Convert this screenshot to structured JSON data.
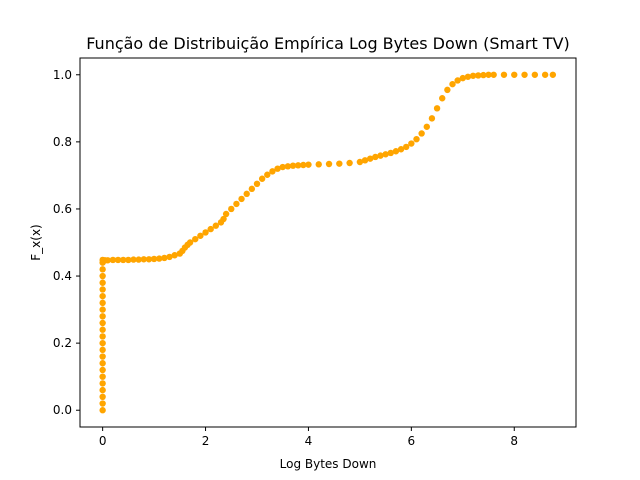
{
  "chart_data": {
    "type": "scatter",
    "title": "Função de Distribuição Empírica Log Bytes Down (Smart TV)",
    "xlabel": "Log Bytes Down",
    "ylabel": "F_x(x)",
    "xlim": [
      -0.44,
      9.2
    ],
    "ylim": [
      -0.05,
      1.05
    ],
    "xticks": [
      0,
      2,
      4,
      6,
      8
    ],
    "xtick_labels": [
      "0",
      "2",
      "4",
      "6",
      "8"
    ],
    "yticks": [
      0.0,
      0.2,
      0.4,
      0.6,
      0.8,
      1.0
    ],
    "ytick_labels": [
      "0.0",
      "0.2",
      "0.4",
      "0.6",
      "0.8",
      "1.0"
    ],
    "grid": false,
    "legend": "none",
    "marker_color": "#ffa500",
    "series": [
      {
        "x": [
          0,
          0,
          0,
          0,
          0,
          0,
          0,
          0,
          0,
          0,
          0,
          0,
          0,
          0,
          0,
          0,
          0,
          0,
          0,
          0,
          0,
          0,
          0,
          0,
          0.02,
          0.05,
          0.1,
          0.2,
          0.3,
          0.4,
          0.5,
          0.6,
          0.7,
          0.8,
          0.9,
          1.0,
          1.1,
          1.2,
          1.3,
          1.4,
          1.5,
          1.55,
          1.6,
          1.65,
          1.7,
          1.8,
          1.9,
          2.0,
          2.1,
          2.2,
          2.3,
          2.35,
          2.4,
          2.5,
          2.6,
          2.7,
          2.8,
          2.9,
          3.0,
          3.1,
          3.2,
          3.3,
          3.4,
          3.5,
          3.6,
          3.7,
          3.8,
          3.9,
          4.0,
          4.2,
          4.4,
          4.6,
          4.8,
          5.0,
          5.1,
          5.2,
          5.3,
          5.4,
          5.5,
          5.6,
          5.7,
          5.8,
          5.9,
          6.0,
          6.1,
          6.2,
          6.3,
          6.4,
          6.5,
          6.6,
          6.7,
          6.8,
          6.9,
          7.0,
          7.1,
          7.2,
          7.3,
          7.4,
          7.5,
          7.6,
          7.8,
          8.0,
          8.2,
          8.4,
          8.6,
          8.75
        ],
        "y": [
          0.0,
          0.02,
          0.04,
          0.06,
          0.08,
          0.1,
          0.12,
          0.14,
          0.16,
          0.18,
          0.2,
          0.22,
          0.24,
          0.26,
          0.28,
          0.3,
          0.32,
          0.34,
          0.36,
          0.38,
          0.4,
          0.42,
          0.44,
          0.448,
          0.447,
          0.447,
          0.447,
          0.448,
          0.448,
          0.448,
          0.448,
          0.449,
          0.449,
          0.45,
          0.45,
          0.451,
          0.452,
          0.454,
          0.457,
          0.462,
          0.467,
          0.475,
          0.485,
          0.493,
          0.5,
          0.51,
          0.52,
          0.53,
          0.54,
          0.55,
          0.56,
          0.57,
          0.585,
          0.6,
          0.615,
          0.63,
          0.645,
          0.66,
          0.675,
          0.69,
          0.702,
          0.712,
          0.72,
          0.725,
          0.727,
          0.729,
          0.73,
          0.731,
          0.732,
          0.733,
          0.734,
          0.735,
          0.737,
          0.74,
          0.745,
          0.75,
          0.755,
          0.759,
          0.763,
          0.767,
          0.772,
          0.778,
          0.785,
          0.795,
          0.808,
          0.825,
          0.845,
          0.87,
          0.9,
          0.93,
          0.955,
          0.972,
          0.983,
          0.99,
          0.994,
          0.997,
          0.998,
          0.999,
          1.0,
          1.0,
          1.0,
          1.0,
          1.0,
          1.0,
          1.0,
          1.0
        ]
      }
    ]
  }
}
